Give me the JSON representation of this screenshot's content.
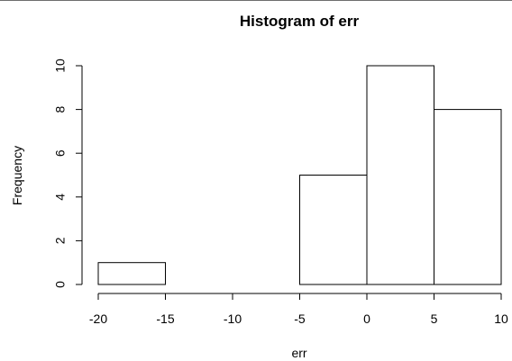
{
  "chart_data": {
    "type": "bar",
    "title": "Histogram of err",
    "xlabel": "err",
    "ylabel": "Frequency",
    "bins": [
      {
        "x0": -20,
        "x1": -15,
        "count": 1
      },
      {
        "x0": -15,
        "x1": -10,
        "count": 0
      },
      {
        "x0": -10,
        "x1": -5,
        "count": 0
      },
      {
        "x0": -5,
        "x1": 0,
        "count": 5
      },
      {
        "x0": 0,
        "x1": 5,
        "count": 10
      },
      {
        "x0": 5,
        "x1": 10,
        "count": 8
      }
    ],
    "xlim": [
      -20,
      10
    ],
    "ylim": [
      0,
      10
    ],
    "x_ticks": [
      -20,
      -15,
      -10,
      -5,
      0,
      5,
      10
    ],
    "y_ticks": [
      0,
      2,
      4,
      6,
      8,
      10
    ],
    "x_tick_labels": [
      "-20",
      "-15",
      "-10",
      "-5",
      "0",
      "5",
      "10"
    ],
    "y_tick_labels": [
      "0",
      "2",
      "4",
      "6",
      "8",
      "10"
    ],
    "grid": false,
    "colors": {
      "bar_fill": "#ffffff",
      "bar_stroke": "#000000",
      "axis": "#000000",
      "top_rule": "#6e6e6e"
    }
  }
}
